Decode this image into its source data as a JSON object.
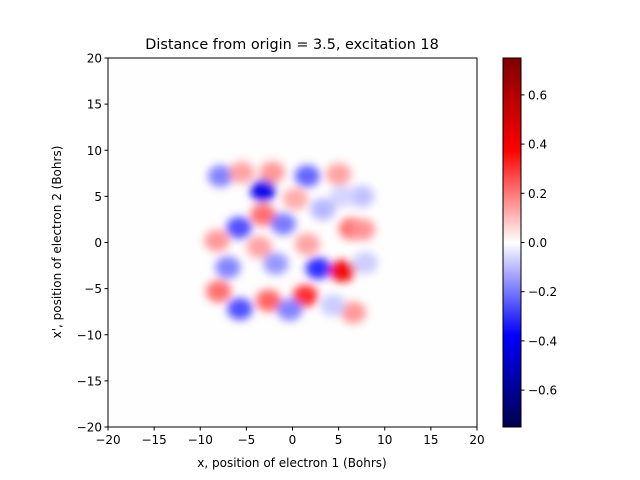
{
  "chart_data": {
    "type": "heatmap",
    "title": "Distance from origin = 3.5, excitation 18",
    "xlabel": "x, position of electron 1 (Bohrs)",
    "ylabel": "x', position of electron 2 (Bohrs)",
    "xlim": [
      -20,
      20
    ],
    "ylim": [
      -20,
      20
    ],
    "xticks": [
      -20,
      -15,
      -10,
      -5,
      0,
      5,
      10,
      15,
      20
    ],
    "yticks": [
      -20,
      -15,
      -10,
      -5,
      0,
      5,
      10,
      15,
      20
    ],
    "xtick_labels": [
      "−20",
      "−15",
      "−10",
      "−5",
      "0",
      "5",
      "10",
      "15",
      "20"
    ],
    "ytick_labels": [
      "−20",
      "−15",
      "−10",
      "−5",
      "0",
      "5",
      "10",
      "15",
      "20"
    ],
    "colormap": "seismic",
    "colorbar": {
      "range": [
        -0.75,
        0.75
      ],
      "ticks": [
        -0.6,
        -0.4,
        -0.2,
        0.0,
        0.2,
        0.4,
        0.6
      ],
      "tick_labels": [
        "−0.6",
        "−0.4",
        "−0.2",
        "0.0",
        "0.2",
        "0.4",
        "0.6"
      ]
    },
    "grid": false,
    "lobes": [
      {
        "x": -7.8,
        "y": 7.2,
        "v": -0.12
      },
      {
        "x": -5.5,
        "y": 7.6,
        "v": 0.09
      },
      {
        "x": -2.2,
        "y": 7.6,
        "v": 0.1
      },
      {
        "x": 1.6,
        "y": 7.2,
        "v": -0.15
      },
      {
        "x": 5.0,
        "y": 7.4,
        "v": 0.09
      },
      {
        "x": 7.5,
        "y": 5.0,
        "v": -0.06
      },
      {
        "x": -3.2,
        "y": 5.6,
        "v": -0.26
      },
      {
        "x": -3.2,
        "y": 3.0,
        "v": 0.14
      },
      {
        "x": 0.3,
        "y": 4.7,
        "v": 0.08
      },
      {
        "x": -5.8,
        "y": 1.6,
        "v": -0.17
      },
      {
        "x": -1.0,
        "y": 2.0,
        "v": -0.13
      },
      {
        "x": 3.3,
        "y": 3.6,
        "v": -0.07
      },
      {
        "x": 6.4,
        "y": 1.5,
        "v": 0.14
      },
      {
        "x": -8.2,
        "y": 0.2,
        "v": 0.1
      },
      {
        "x": -3.6,
        "y": -0.5,
        "v": 0.09
      },
      {
        "x": 1.6,
        "y": -0.2,
        "v": 0.09
      },
      {
        "x": -7.0,
        "y": -2.7,
        "v": -0.12
      },
      {
        "x": -1.8,
        "y": -2.3,
        "v": -0.1
      },
      {
        "x": 2.8,
        "y": -2.8,
        "v": -0.2
      },
      {
        "x": 5.4,
        "y": -3.1,
        "v": 0.26
      },
      {
        "x": 7.9,
        "y": -2.2,
        "v": -0.05
      },
      {
        "x": -8.0,
        "y": -5.3,
        "v": 0.14
      },
      {
        "x": -2.6,
        "y": -6.3,
        "v": 0.15
      },
      {
        "x": 1.4,
        "y": -5.8,
        "v": 0.2
      },
      {
        "x": -5.7,
        "y": -7.2,
        "v": -0.17
      },
      {
        "x": -0.3,
        "y": -7.3,
        "v": -0.12
      },
      {
        "x": 6.6,
        "y": -7.6,
        "v": 0.1
      },
      {
        "x": 4.4,
        "y": -6.8,
        "v": -0.05
      },
      {
        "x": 7.6,
        "y": 1.4,
        "v": 0.1
      },
      {
        "x": 5.4,
        "y": 5.0,
        "v": -0.04
      }
    ]
  }
}
